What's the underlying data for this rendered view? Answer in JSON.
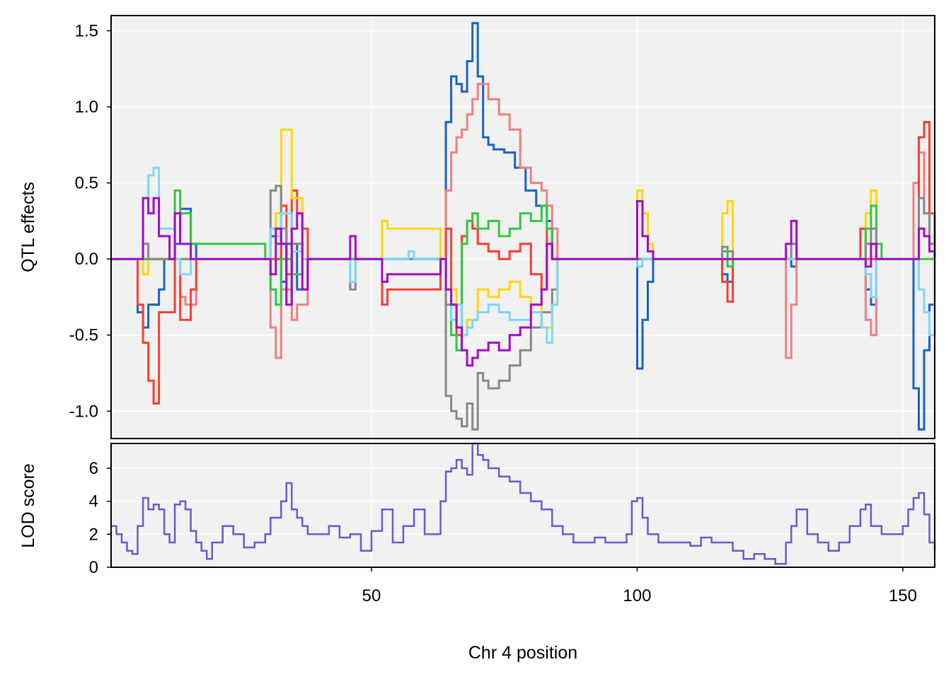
{
  "chart_data": [
    {
      "type": "line",
      "panel": "top",
      "ylabel": "QTL effects",
      "xlim": [
        1,
        156
      ],
      "ylim": [
        -1.18,
        1.6
      ],
      "yticks": [
        -1.0,
        -0.5,
        0.0,
        0.5,
        1.0,
        1.5
      ],
      "ytick_labels": [
        "-1.0",
        "-0.5",
        "0.0",
        "0.5",
        "1.0",
        "1.5"
      ],
      "grid": true,
      "series": [
        {
          "color": "#1764c3",
          "x": [
            1,
            5,
            6,
            7,
            8,
            10,
            11,
            13,
            14,
            16,
            17,
            18,
            20,
            30,
            31,
            32,
            33,
            34,
            36,
            38,
            63,
            64,
            65,
            66,
            67,
            68,
            69,
            70,
            71,
            72,
            73,
            75,
            77,
            79,
            81,
            83,
            84,
            85,
            99,
            100,
            101,
            102,
            103,
            115,
            116,
            117,
            118,
            128,
            129,
            130,
            142,
            143,
            144,
            145,
            152,
            153,
            154,
            155,
            156
          ],
          "y": [
            0,
            0,
            -0.35,
            -0.45,
            -0.3,
            -0.2,
            0,
            0.1,
            0.33,
            0.1,
            0,
            0,
            0,
            0,
            0.15,
            0.1,
            -0.15,
            0.1,
            -0.2,
            0,
            0,
            0.9,
            1.2,
            1.15,
            1.1,
            1.3,
            1.55,
            1.2,
            0.8,
            0.75,
            0.72,
            0.7,
            0.6,
            0.45,
            0.35,
            0.25,
            0,
            0,
            0,
            -0.72,
            -0.4,
            -0.15,
            0,
            0,
            -0.1,
            -0.15,
            0,
            0,
            -0.05,
            0,
            0,
            -0.2,
            -0.3,
            0,
            -0.85,
            -1.12,
            -0.6,
            -0.3,
            0
          ]
        },
        {
          "color": "#f08080",
          "x": [
            1,
            13,
            14,
            15,
            17,
            30,
            31,
            32,
            33,
            35,
            36,
            38,
            63,
            64,
            65,
            66,
            67,
            68,
            69,
            70,
            72,
            74,
            76,
            78,
            80,
            82,
            83,
            84,
            85,
            127,
            128,
            129,
            130,
            142,
            143,
            144,
            145,
            152,
            153,
            154,
            155,
            156
          ],
          "y": [
            0,
            0,
            -0.25,
            -0.3,
            0,
            0,
            -0.45,
            -0.65,
            -0.2,
            -0.4,
            -0.3,
            0,
            0,
            0.45,
            0.7,
            0.8,
            0.85,
            0.95,
            1.05,
            1.15,
            1.05,
            0.95,
            0.85,
            0.6,
            0.5,
            0.45,
            0.35,
            0.2,
            0,
            0,
            -0.65,
            -0.3,
            0,
            0,
            -0.4,
            -0.5,
            0,
            0.5,
            0.7,
            0.3,
            0.1,
            0
          ]
        },
        {
          "color": "#fb3e30",
          "x": [
            1,
            5,
            6,
            7,
            8,
            9,
            10,
            13,
            14,
            16,
            17,
            30,
            33,
            34,
            35,
            36,
            37,
            38,
            51,
            52,
            53,
            63,
            64,
            65,
            66,
            67,
            68,
            69,
            70,
            72,
            74,
            76,
            78,
            80,
            82,
            83,
            84,
            85,
            115,
            116,
            117,
            118,
            141,
            142,
            143,
            152,
            153,
            154,
            155,
            156
          ],
          "y": [
            0,
            0,
            -0.3,
            -0.55,
            -0.8,
            -0.95,
            -0.35,
            0,
            -0.4,
            -0.2,
            0,
            0,
            0.35,
            -0.1,
            0.45,
            0.3,
            0.2,
            0,
            0,
            -0.3,
            -0.2,
            0,
            0.2,
            -0.3,
            -0.5,
            0.15,
            0.25,
            0.2,
            0.1,
            0.05,
            0.0,
            0.05,
            0.1,
            -0.1,
            -0.2,
            0.2,
            0,
            0,
            0,
            -0.15,
            -0.28,
            0,
            0,
            0.2,
            0,
            0,
            0.8,
            0.9,
            0.3,
            0
          ]
        },
        {
          "color": "#ffd700",
          "x": [
            1,
            6,
            7,
            8,
            10,
            30,
            31,
            32,
            33,
            35,
            37,
            51,
            52,
            53,
            63,
            64,
            65,
            66,
            67,
            68,
            70,
            72,
            74,
            76,
            78,
            80,
            82,
            84,
            85,
            99,
            100,
            101,
            102,
            103,
            115,
            116,
            117,
            118,
            142,
            143,
            144,
            145,
            156
          ],
          "y": [
            0,
            0,
            -0.1,
            0,
            0,
            0,
            0.2,
            0.3,
            0.85,
            0.4,
            0,
            0,
            0.25,
            0.2,
            0,
            -0.3,
            -0.2,
            -0.45,
            -0.5,
            -0.4,
            -0.2,
            -0.25,
            -0.2,
            -0.15,
            -0.25,
            -0.3,
            -0.45,
            -0.3,
            0,
            0,
            0.45,
            0.3,
            0.1,
            0,
            0,
            0.3,
            0.38,
            0,
            0,
            0.3,
            0.45,
            0,
            0
          ]
        },
        {
          "color": "#2fc843",
          "x": [
            1,
            12,
            13,
            14,
            16,
            30,
            31,
            32,
            33,
            35,
            37,
            63,
            64,
            65,
            66,
            67,
            68,
            69,
            70,
            72,
            74,
            76,
            78,
            80,
            82,
            83,
            84,
            85,
            115,
            116,
            117,
            118,
            142,
            143,
            144,
            145,
            146,
            155,
            156
          ],
          "y": [
            0,
            0,
            0.45,
            0.3,
            0.1,
            0,
            -0.2,
            -0.3,
            0,
            -0.1,
            0,
            0,
            -0.3,
            -0.5,
            -0.6,
            0.1,
            0.25,
            0.3,
            0.2,
            0.25,
            0.15,
            0.2,
            0.3,
            0.25,
            0.35,
            0.2,
            0,
            0,
            0,
            0.05,
            -0.05,
            0,
            0,
            0.2,
            0.35,
            0.1,
            0,
            0,
            0
          ]
        },
        {
          "color": "#888888",
          "x": [
            1,
            6,
            7,
            8,
            30,
            31,
            32,
            33,
            34,
            35,
            37,
            45,
            46,
            47,
            63,
            64,
            65,
            66,
            67,
            68,
            69,
            70,
            71,
            72,
            74,
            76,
            78,
            80,
            82,
            84,
            85,
            115,
            116,
            117,
            118,
            128,
            129,
            130,
            142,
            143,
            144,
            145,
            152,
            153,
            154,
            155,
            156
          ],
          "y": [
            0,
            0,
            0.1,
            0,
            0,
            0.45,
            0.48,
            0.2,
            -0.3,
            0.1,
            0,
            0,
            -0.2,
            0,
            0,
            -0.9,
            -1.0,
            -1.05,
            -1.1,
            -0.95,
            -1.12,
            -0.75,
            -0.8,
            -0.85,
            -0.8,
            -0.7,
            -0.6,
            -0.45,
            -0.35,
            -0.2,
            0,
            0,
            0.08,
            0.05,
            0,
            0,
            0.1,
            0,
            0,
            0.1,
            0.2,
            0,
            0,
            0.4,
            0.3,
            0.1,
            0
          ]
        },
        {
          "color": "#7dd6fb",
          "x": [
            1,
            6,
            7,
            8,
            9,
            10,
            13,
            14,
            16,
            30,
            31,
            32,
            33,
            35,
            37,
            45,
            46,
            47,
            56,
            57,
            58,
            63,
            64,
            65,
            66,
            67,
            68,
            69,
            70,
            72,
            74,
            76,
            78,
            80,
            82,
            83,
            84,
            85,
            99,
            100,
            101,
            142,
            143,
            144,
            145,
            152,
            153,
            154,
            155,
            156
          ],
          "y": [
            0,
            0,
            0.4,
            0.55,
            0.6,
            0.2,
            0,
            -0.1,
            0,
            0,
            0.2,
            0.15,
            0.3,
            0.05,
            0,
            0,
            -0.15,
            0,
            0,
            0.05,
            0,
            0,
            -0.2,
            -0.4,
            -0.3,
            -0.5,
            -0.45,
            -0.4,
            -0.35,
            -0.3,
            -0.35,
            -0.4,
            -0.4,
            -0.35,
            -0.45,
            -0.55,
            -0.3,
            0,
            0,
            -0.05,
            0,
            0,
            -0.1,
            -0.25,
            0,
            0,
            -0.2,
            -0.35,
            -0.5,
            0
          ]
        },
        {
          "color": "#a30cc4",
          "x": [
            1,
            6,
            7,
            8,
            9,
            10,
            12,
            13,
            14,
            16,
            30,
            31,
            32,
            33,
            34,
            35,
            36,
            37,
            38,
            45,
            46,
            47,
            51,
            52,
            53,
            63,
            64,
            65,
            66,
            67,
            68,
            69,
            70,
            72,
            74,
            76,
            78,
            80,
            82,
            83,
            84,
            99,
            100,
            101,
            102,
            103,
            127,
            128,
            129,
            130,
            142,
            143,
            144,
            145,
            152,
            153,
            154,
            155,
            156
          ],
          "y": [
            0,
            0,
            0.4,
            0.3,
            0.4,
            0.15,
            0,
            0.3,
            0.1,
            0,
            0,
            -0.1,
            0.2,
            0.1,
            -0.3,
            0.2,
            0.3,
            -0.2,
            0,
            0,
            0.15,
            0,
            0,
            -0.15,
            -0.1,
            0,
            -0.2,
            -0.3,
            -0.45,
            -0.6,
            -0.7,
            -0.65,
            -0.6,
            -0.55,
            -0.6,
            -0.5,
            -0.45,
            -0.3,
            -0.2,
            0.1,
            0,
            0,
            0.38,
            0.15,
            0.05,
            0,
            0,
            0.1,
            0.25,
            0,
            0,
            -0.05,
            0.1,
            0,
            0,
            0.2,
            0.15,
            0.05,
            0
          ]
        }
      ]
    },
    {
      "type": "line",
      "panel": "bottom",
      "xlabel": "Chr 4 position",
      "ylabel": "LOD score",
      "xlim": [
        1,
        156
      ],
      "ylim": [
        0,
        7.5
      ],
      "yticks": [
        0,
        2,
        4,
        6
      ],
      "ytick_labels": [
        "0",
        "2",
        "4",
        "6"
      ],
      "xticks": [
        50,
        100,
        150
      ],
      "xtick_labels": [
        "50",
        "100",
        "150"
      ],
      "grid": true,
      "series": [
        {
          "color": "#6a5acd",
          "x": [
            1,
            2,
            3,
            4,
            5,
            6,
            7,
            8,
            9,
            10,
            11,
            12,
            13,
            14,
            15,
            16,
            17,
            18,
            19,
            20,
            22,
            24,
            26,
            28,
            30,
            31,
            32,
            33,
            34,
            35,
            36,
            37,
            38,
            40,
            42,
            44,
            46,
            48,
            50,
            52,
            54,
            56,
            58,
            60,
            62,
            63,
            64,
            65,
            66,
            67,
            68,
            69,
            70,
            71,
            72,
            74,
            76,
            78,
            80,
            82,
            84,
            86,
            88,
            90,
            92,
            94,
            96,
            98,
            99,
            100,
            101,
            102,
            104,
            106,
            108,
            110,
            112,
            114,
            116,
            118,
            120,
            122,
            124,
            126,
            128,
            129,
            130,
            132,
            134,
            136,
            138,
            140,
            142,
            143,
            144,
            146,
            148,
            150,
            151,
            152,
            153,
            154,
            155,
            156
          ],
          "y": [
            2.5,
            2.0,
            1.5,
            1.0,
            0.8,
            2.5,
            4.2,
            3.5,
            3.8,
            3.5,
            2.0,
            1.5,
            3.8,
            4.0,
            3.5,
            2.2,
            1.5,
            1.0,
            0.5,
            1.5,
            2.5,
            2.0,
            1.2,
            1.5,
            2.0,
            3.0,
            3.0,
            4.0,
            5.1,
            3.5,
            3.0,
            2.5,
            2.0,
            2.0,
            2.5,
            1.8,
            2.0,
            1.0,
            2.2,
            3.5,
            1.5,
            2.5,
            3.5,
            2.0,
            2.0,
            4.0,
            5.8,
            6.0,
            6.5,
            6.0,
            5.6,
            7.5,
            6.8,
            6.5,
            6.0,
            5.5,
            5.2,
            4.5,
            4.0,
            3.5,
            2.5,
            2.0,
            1.5,
            1.5,
            1.8,
            1.5,
            1.5,
            2.0,
            4.0,
            4.2,
            3.0,
            2.0,
            1.5,
            1.5,
            1.5,
            1.3,
            1.8,
            1.5,
            1.5,
            1.0,
            0.5,
            0.8,
            0.5,
            0.2,
            1.5,
            2.5,
            3.5,
            2.0,
            1.5,
            1.0,
            1.5,
            2.5,
            3.5,
            3.8,
            2.5,
            2.0,
            2.0,
            2.5,
            3.5,
            4.2,
            4.5,
            3.2,
            1.5,
            1.0
          ]
        }
      ]
    }
  ]
}
